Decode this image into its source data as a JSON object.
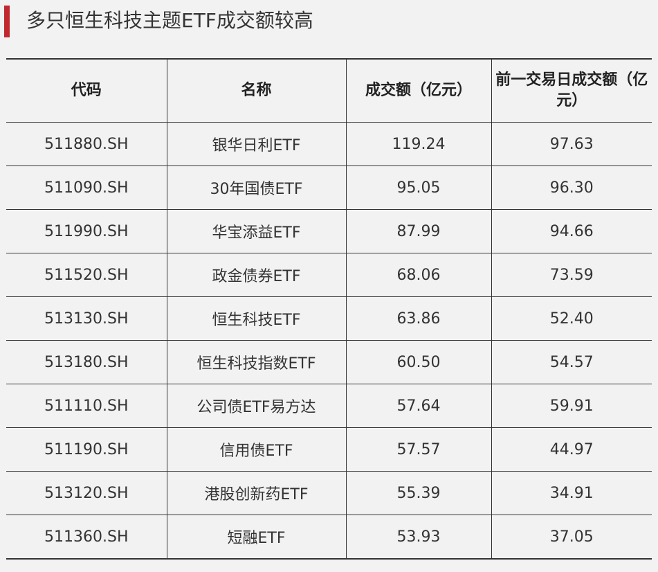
{
  "header": {
    "title": "多只恒生科技主题ETF成交额较高",
    "accent_color": "#c0282d"
  },
  "table": {
    "columns": [
      "代码",
      "名称",
      "成交额（亿元）",
      "前一交易日成交额（亿元）"
    ],
    "rows": [
      {
        "code": "511880.SH",
        "name": "银华日利ETF",
        "turnover": "119.24",
        "prev_turnover": "97.63"
      },
      {
        "code": "511090.SH",
        "name": "30年国债ETF",
        "turnover": "95.05",
        "prev_turnover": "96.30"
      },
      {
        "code": "511990.SH",
        "name": "华宝添益ETF",
        "turnover": "87.99",
        "prev_turnover": "94.66"
      },
      {
        "code": "511520.SH",
        "name": "政金债券ETF",
        "turnover": "68.06",
        "prev_turnover": "73.59"
      },
      {
        "code": "513130.SH",
        "name": "恒生科技ETF",
        "turnover": "63.86",
        "prev_turnover": "52.40"
      },
      {
        "code": "513180.SH",
        "name": "恒生科技指数ETF",
        "turnover": "60.50",
        "prev_turnover": "54.57"
      },
      {
        "code": "511110.SH",
        "name": "公司债ETF易方达",
        "turnover": "57.64",
        "prev_turnover": "59.91"
      },
      {
        "code": "511190.SH",
        "name": "信用债ETF",
        "turnover": "57.57",
        "prev_turnover": "44.97"
      },
      {
        "code": "513120.SH",
        "name": "港股创新药ETF",
        "turnover": "55.39",
        "prev_turnover": "34.91"
      },
      {
        "code": "511360.SH",
        "name": "短融ETF",
        "turnover": "53.93",
        "prev_turnover": "37.05"
      }
    ]
  }
}
